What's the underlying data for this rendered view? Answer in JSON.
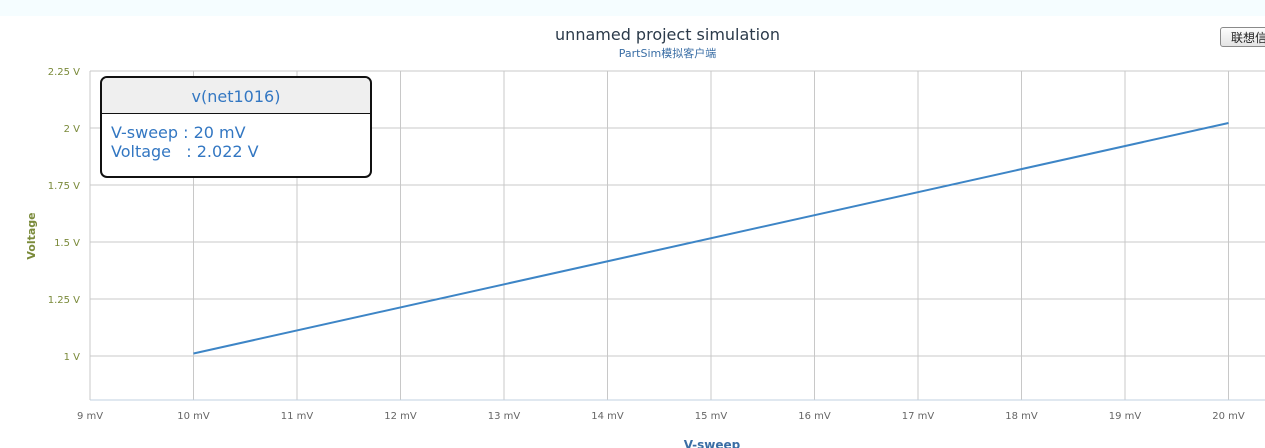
{
  "header": {
    "title": "unnamed project simulation",
    "subtitle": "PartSim模拟客户端"
  },
  "toolbar": {
    "context_button_label": "联想信"
  },
  "tooltip": {
    "series_name": "v(net1016)",
    "rows": [
      {
        "label": "V-sweep",
        "sep": " : ",
        "value": "20 mV"
      },
      {
        "label": "Voltage",
        "sep": "   : ",
        "value": "2.022 V"
      }
    ]
  },
  "colors": {
    "line": "#3d85c6",
    "grid": "#c8c8c8",
    "y_tick": "#7a8a3a",
    "x_tick": "#666666",
    "axis_title": "#3a6ea5"
  },
  "chart_data": {
    "type": "line",
    "title": "unnamed project simulation",
    "subtitle": "PartSim模拟客户端",
    "xlabel": "V-sweep",
    "ylabel": "Voltage",
    "xlim": [
      9,
      20
    ],
    "ylim": [
      0.75,
      2.25
    ],
    "x_ticks": [
      "9 mV",
      "10 mV",
      "11 mV",
      "12 mV",
      "13 mV",
      "14 mV",
      "15 mV",
      "16 mV",
      "17 mV",
      "18 mV",
      "19 mV",
      "20 mV"
    ],
    "y_ticks": [
      "1 V",
      "1.25 V",
      "1.5 V",
      "1.75 V",
      "2 V",
      "2.25 V"
    ],
    "grid": true,
    "series": [
      {
        "name": "v(net1016)",
        "x": [
          10,
          20
        ],
        "y": [
          1.011,
          2.022
        ]
      }
    ]
  }
}
